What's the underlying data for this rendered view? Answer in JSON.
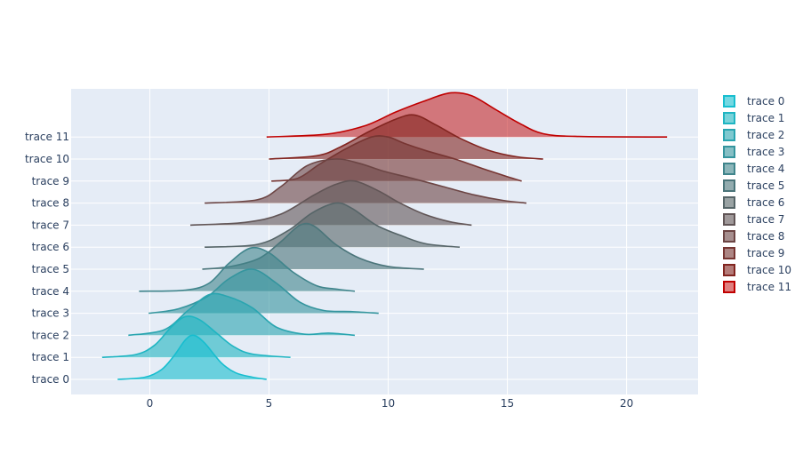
{
  "chart_data": {
    "type": "violin",
    "orientation": "horizontal",
    "side": "positive",
    "title": "",
    "xlabel": "",
    "ylabel": "",
    "xlim": [
      -3.3,
      23
    ],
    "x_ticks": [
      0,
      5,
      10,
      15,
      20
    ],
    "x_tick_labels": [
      "0",
      "5",
      "10",
      "15",
      "20"
    ],
    "grid": true,
    "legend_position": "right",
    "background": "#e5ecf6",
    "series": [
      {
        "name": "trace 0",
        "color": "#17becf",
        "fill": "rgba(23,190,207,0.6)",
        "range": [
          -1.35,
          4.9
        ],
        "density": [
          [
            -1.35,
            0
          ],
          [
            -0.2,
            0.04
          ],
          [
            0.5,
            0.18
          ],
          [
            1.0,
            0.42
          ],
          [
            1.5,
            0.72
          ],
          [
            1.85,
            0.8
          ],
          [
            2.3,
            0.66
          ],
          [
            3.0,
            0.3
          ],
          [
            3.6,
            0.12
          ],
          [
            4.3,
            0.04
          ],
          [
            4.9,
            0
          ]
        ]
      },
      {
        "name": "trace 1",
        "color": "#1fb5c2",
        "fill": "rgba(31,181,194,0.6)",
        "range": [
          -2.0,
          5.9
        ],
        "density": [
          [
            -2.0,
            0
          ],
          [
            -0.6,
            0.05
          ],
          [
            0.2,
            0.22
          ],
          [
            0.9,
            0.55
          ],
          [
            1.5,
            0.74
          ],
          [
            2.1,
            0.68
          ],
          [
            2.8,
            0.44
          ],
          [
            3.5,
            0.2
          ],
          [
            4.3,
            0.06
          ],
          [
            5.9,
            0
          ]
        ]
      },
      {
        "name": "trace 2",
        "color": "#2aa5b0",
        "fill": "rgba(42,165,176,0.6)",
        "range": [
          -0.9,
          8.6
        ],
        "density": [
          [
            -0.9,
            0
          ],
          [
            0.6,
            0.1
          ],
          [
            1.6,
            0.45
          ],
          [
            2.5,
            0.74
          ],
          [
            3.3,
            0.7
          ],
          [
            4.3,
            0.5
          ],
          [
            5.3,
            0.15
          ],
          [
            6.5,
            0.02
          ],
          [
            7.5,
            0.04
          ],
          [
            8.6,
            0
          ]
        ]
      },
      {
        "name": "trace 3",
        "color": "#35959e",
        "fill": "rgba(53,149,158,0.6)",
        "range": [
          -0.05,
          9.6
        ],
        "density": [
          [
            -0.05,
            0
          ],
          [
            1.2,
            0.08
          ],
          [
            2.4,
            0.3
          ],
          [
            3.3,
            0.62
          ],
          [
            4.3,
            0.8
          ],
          [
            5.3,
            0.55
          ],
          [
            6.3,
            0.2
          ],
          [
            7.3,
            0.05
          ],
          [
            8.5,
            0.03
          ],
          [
            9.6,
            0
          ]
        ]
      },
      {
        "name": "trace 4",
        "color": "#40858c",
        "fill": "rgba(64,133,140,0.6)",
        "range": [
          -0.45,
          8.6
        ],
        "density": [
          [
            -0.45,
            0
          ],
          [
            1.5,
            0.02
          ],
          [
            2.5,
            0.15
          ],
          [
            3.3,
            0.5
          ],
          [
            4.2,
            0.78
          ],
          [
            5.0,
            0.7
          ],
          [
            6.0,
            0.35
          ],
          [
            7.0,
            0.1
          ],
          [
            7.8,
            0.04
          ],
          [
            8.6,
            0
          ]
        ]
      },
      {
        "name": "trace 5",
        "color": "#4b757a",
        "fill": "rgba(75,117,122,0.6)",
        "range": [
          2.2,
          11.5
        ],
        "density": [
          [
            2.2,
            0
          ],
          [
            3.4,
            0.05
          ],
          [
            4.6,
            0.2
          ],
          [
            5.5,
            0.5
          ],
          [
            6.3,
            0.8
          ],
          [
            6.9,
            0.78
          ],
          [
            7.8,
            0.45
          ],
          [
            8.8,
            0.2
          ],
          [
            10.0,
            0.05
          ],
          [
            11.5,
            0
          ]
        ]
      },
      {
        "name": "trace 6",
        "color": "#566568",
        "fill": "rgba(86,101,104,0.6)",
        "range": [
          2.3,
          13.0
        ],
        "density": [
          [
            2.3,
            0
          ],
          [
            4.5,
            0.05
          ],
          [
            5.8,
            0.3
          ],
          [
            6.8,
            0.62
          ],
          [
            7.8,
            0.8
          ],
          [
            8.5,
            0.7
          ],
          [
            9.5,
            0.4
          ],
          [
            10.6,
            0.2
          ],
          [
            11.6,
            0.06
          ],
          [
            13.0,
            0
          ]
        ]
      },
      {
        "name": "trace 7",
        "color": "#615556",
        "fill": "rgba(97,85,86,0.6)",
        "range": [
          1.7,
          13.5
        ],
        "density": [
          [
            1.7,
            0
          ],
          [
            4.0,
            0.05
          ],
          [
            5.5,
            0.2
          ],
          [
            6.9,
            0.55
          ],
          [
            7.8,
            0.74
          ],
          [
            8.6,
            0.8
          ],
          [
            9.6,
            0.62
          ],
          [
            10.5,
            0.4
          ],
          [
            11.5,
            0.2
          ],
          [
            12.6,
            0.06
          ],
          [
            13.5,
            0
          ]
        ]
      },
      {
        "name": "trace 8",
        "color": "#6c4544",
        "fill": "rgba(108,69,68,0.6)",
        "range": [
          2.3,
          15.8
        ],
        "density": [
          [
            2.3,
            0
          ],
          [
            4.5,
            0.06
          ],
          [
            5.5,
            0.3
          ],
          [
            6.6,
            0.68
          ],
          [
            7.8,
            0.8
          ],
          [
            8.8,
            0.72
          ],
          [
            9.8,
            0.58
          ],
          [
            11.0,
            0.45
          ],
          [
            12.3,
            0.3
          ],
          [
            13.6,
            0.15
          ],
          [
            14.8,
            0.05
          ],
          [
            15.8,
            0
          ]
        ]
      },
      {
        "name": "trace 9",
        "color": "#773532",
        "fill": "rgba(119,53,50,0.6)",
        "range": [
          5.1,
          15.6
        ],
        "density": [
          [
            5.1,
            0
          ],
          [
            6.2,
            0.05
          ],
          [
            7.1,
            0.3
          ],
          [
            8.2,
            0.58
          ],
          [
            9.3,
            0.8
          ],
          [
            10.0,
            0.8
          ],
          [
            10.7,
            0.68
          ],
          [
            11.6,
            0.55
          ],
          [
            12.8,
            0.4
          ],
          [
            14.0,
            0.22
          ],
          [
            15.0,
            0.08
          ],
          [
            15.6,
            0
          ]
        ]
      },
      {
        "name": "trace 10",
        "color": "#822520",
        "fill": "rgba(130,37,32,0.6)",
        "range": [
          5.0,
          16.5
        ],
        "density": [
          [
            5.0,
            0
          ],
          [
            7.0,
            0.06
          ],
          [
            8.0,
            0.22
          ],
          [
            9.2,
            0.5
          ],
          [
            10.3,
            0.72
          ],
          [
            11.1,
            0.8
          ],
          [
            12.0,
            0.62
          ],
          [
            13.0,
            0.38
          ],
          [
            14.2,
            0.16
          ],
          [
            15.4,
            0.04
          ],
          [
            16.5,
            0
          ]
        ]
      },
      {
        "name": "trace 11",
        "color": "#c00000",
        "fill": "rgba(192,0,0,0.5)",
        "range": [
          4.9,
          21.7
        ],
        "density": [
          [
            4.9,
            0
          ],
          [
            7.4,
            0.05
          ],
          [
            9.0,
            0.2
          ],
          [
            10.3,
            0.45
          ],
          [
            11.5,
            0.65
          ],
          [
            12.6,
            0.8
          ],
          [
            13.5,
            0.75
          ],
          [
            14.5,
            0.5
          ],
          [
            15.5,
            0.25
          ],
          [
            16.5,
            0.06
          ],
          [
            18.0,
            0.01
          ],
          [
            21.7,
            0
          ]
        ]
      }
    ]
  }
}
